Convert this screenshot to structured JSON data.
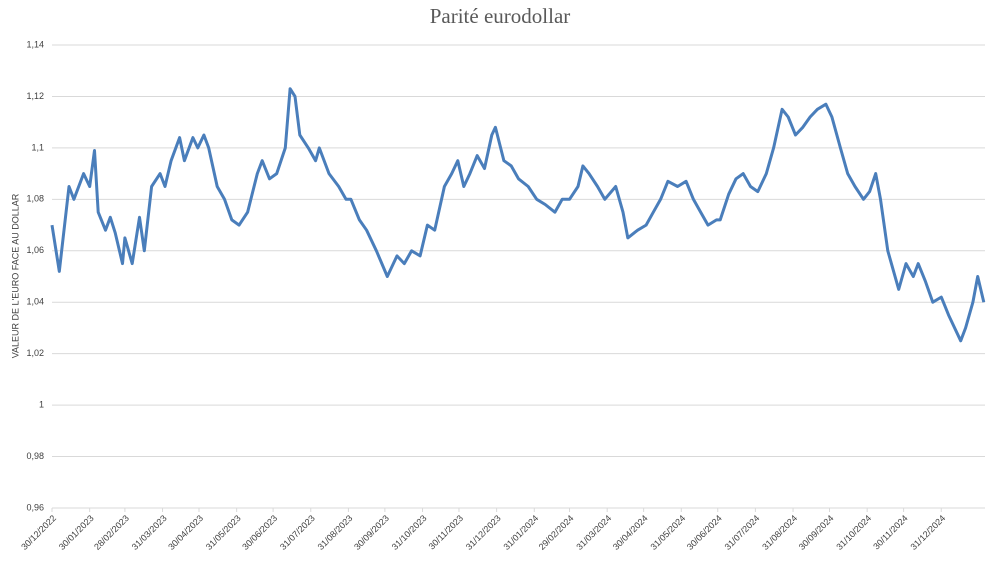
{
  "chart_data": {
    "type": "line",
    "title": "Parité eurodollar",
    "y_label": "VALEUR DE L'EURO FACE AU DOLLAR",
    "grid": true,
    "xlim": [
      "30/12/2022",
      "05/02/2025"
    ],
    "xticks": [
      "30/12/2022",
      "30/01/2023",
      "28/02/2023",
      "31/03/2023",
      "30/04/2023",
      "31/05/2023",
      "30/06/2023",
      "31/07/2023",
      "31/08/2023",
      "30/09/2023",
      "31/10/2023",
      "30/11/2023",
      "31/12/2023",
      "31/01/2024",
      "29/02/2024",
      "31/03/2024",
      "30/04/2024",
      "31/05/2024",
      "30/06/2024",
      "31/07/2024",
      "31/08/2024",
      "30/09/2024",
      "31/10/2024",
      "30/11/2024",
      "31/12/2024"
    ],
    "ylim": [
      0.96,
      1.14
    ],
    "yticks": [
      {
        "value": 0.96,
        "label": "0,96"
      },
      {
        "value": 0.98,
        "label": "0,98"
      },
      1,
      {
        "value": 1.02,
        "label": "1,02"
      },
      {
        "value": 1.04,
        "label": "1,04"
      },
      {
        "value": 1.06,
        "label": "1,06"
      },
      {
        "value": 1.08,
        "label": "1,08"
      },
      {
        "value": 1.1,
        "label": "1,1"
      },
      {
        "value": 1.12,
        "label": "1,12"
      },
      {
        "value": 1.14,
        "label": "1,14"
      }
    ],
    "x": [
      "30/12/2022",
      "05/01/2023",
      "13/01/2023",
      "17/01/2023",
      "25/01/2023",
      "30/01/2023",
      "03/02/2023",
      "06/02/2023",
      "12/02/2023",
      "16/02/2023",
      "20/02/2023",
      "26/02/2023",
      "28/02/2023",
      "06/03/2023",
      "12/03/2023",
      "16/03/2023",
      "22/03/2023",
      "29/03/2023",
      "02/04/2023",
      "07/04/2023",
      "14/04/2023",
      "18/04/2023",
      "25/04/2023",
      "29/04/2023",
      "04/05/2023",
      "08/05/2023",
      "15/05/2023",
      "21/05/2023",
      "27/05/2023",
      "02/06/2023",
      "09/06/2023",
      "17/06/2023",
      "21/06/2023",
      "27/06/2023",
      "03/07/2023",
      "10/07/2023",
      "14/07/2023",
      "18/07/2023",
      "22/07/2023",
      "29/07/2023",
      "04/08/2023",
      "07/08/2023",
      "15/08/2023",
      "23/08/2023",
      "29/08/2023",
      "02/09/2023",
      "09/09/2023",
      "15/09/2023",
      "23/09/2023",
      "02/10/2023",
      "10/10/2023",
      "16/10/2023",
      "22/10/2023",
      "29/10/2023",
      "04/11/2023",
      "10/11/2023",
      "18/11/2023",
      "24/11/2023",
      "29/11/2023",
      "04/12/2023",
      "09/12/2023",
      "15/12/2023",
      "21/12/2023",
      "27/12/2023",
      "30/12/2023",
      "06/01/2024",
      "12/01/2024",
      "18/01/2024",
      "26/01/2024",
      "02/02/2024",
      "09/02/2024",
      "17/02/2024",
      "23/02/2024",
      "29/02/2024",
      "07/03/2024",
      "11/03/2024",
      "16/03/2024",
      "23/03/2024",
      "29/03/2024",
      "07/04/2024",
      "13/04/2024",
      "17/04/2024",
      "25/04/2024",
      "02/05/2024",
      "08/05/2024",
      "14/05/2024",
      "20/05/2024",
      "28/05/2024",
      "04/06/2024",
      "10/06/2024",
      "16/06/2024",
      "22/06/2024",
      "29/06/2024",
      "02/07/2024",
      "09/07/2024",
      "15/07/2024",
      "21/07/2024",
      "27/07/2024",
      "02/08/2024",
      "09/08/2024",
      "15/08/2024",
      "22/08/2024",
      "27/08/2024",
      "02/09/2024",
      "08/09/2024",
      "14/09/2024",
      "20/09/2024",
      "27/09/2024",
      "02/10/2024",
      "09/10/2024",
      "15/10/2024",
      "21/10/2024",
      "28/10/2024",
      "02/11/2024",
      "07/11/2024",
      "11/11/2024",
      "17/11/2024",
      "26/11/2024",
      "02/12/2024",
      "08/12/2024",
      "12/12/2024",
      "18/12/2024",
      "24/12/2024",
      "31/12/2024",
      "06/01/2025",
      "16/01/2025",
      "20/01/2025",
      "26/01/2025",
      "30/01/2025",
      "04/02/2025"
    ],
    "series": [
      {
        "color": "#4a7ebb",
        "values": [
          1.07,
          1.052,
          1.085,
          1.08,
          1.09,
          1.085,
          1.099,
          1.075,
          1.068,
          1.073,
          1.067,
          1.055,
          1.065,
          1.055,
          1.073,
          1.06,
          1.085,
          1.09,
          1.085,
          1.095,
          1.104,
          1.095,
          1.104,
          1.1,
          1.105,
          1.1,
          1.085,
          1.08,
          1.072,
          1.07,
          1.075,
          1.09,
          1.095,
          1.088,
          1.09,
          1.1,
          1.123,
          1.12,
          1.105,
          1.1,
          1.095,
          1.1,
          1.09,
          1.085,
          1.08,
          1.08,
          1.072,
          1.068,
          1.06,
          1.05,
          1.058,
          1.055,
          1.06,
          1.058,
          1.07,
          1.068,
          1.085,
          1.09,
          1.095,
          1.085,
          1.09,
          1.097,
          1.092,
          1.105,
          1.108,
          1.095,
          1.093,
          1.088,
          1.085,
          1.08,
          1.078,
          1.075,
          1.08,
          1.08,
          1.085,
          1.093,
          1.09,
          1.085,
          1.08,
          1.085,
          1.075,
          1.065,
          1.068,
          1.07,
          1.075,
          1.08,
          1.087,
          1.085,
          1.087,
          1.08,
          1.075,
          1.07,
          1.072,
          1.072,
          1.082,
          1.088,
          1.09,
          1.085,
          1.083,
          1.09,
          1.1,
          1.115,
          1.112,
          1.105,
          1.108,
          1.112,
          1.115,
          1.117,
          1.112,
          1.1,
          1.09,
          1.085,
          1.08,
          1.083,
          1.09,
          1.08,
          1.06,
          1.045,
          1.055,
          1.05,
          1.055,
          1.048,
          1.04,
          1.042,
          1.035,
          1.025,
          1.03,
          1.04,
          1.05,
          1.04
        ]
      }
    ]
  }
}
